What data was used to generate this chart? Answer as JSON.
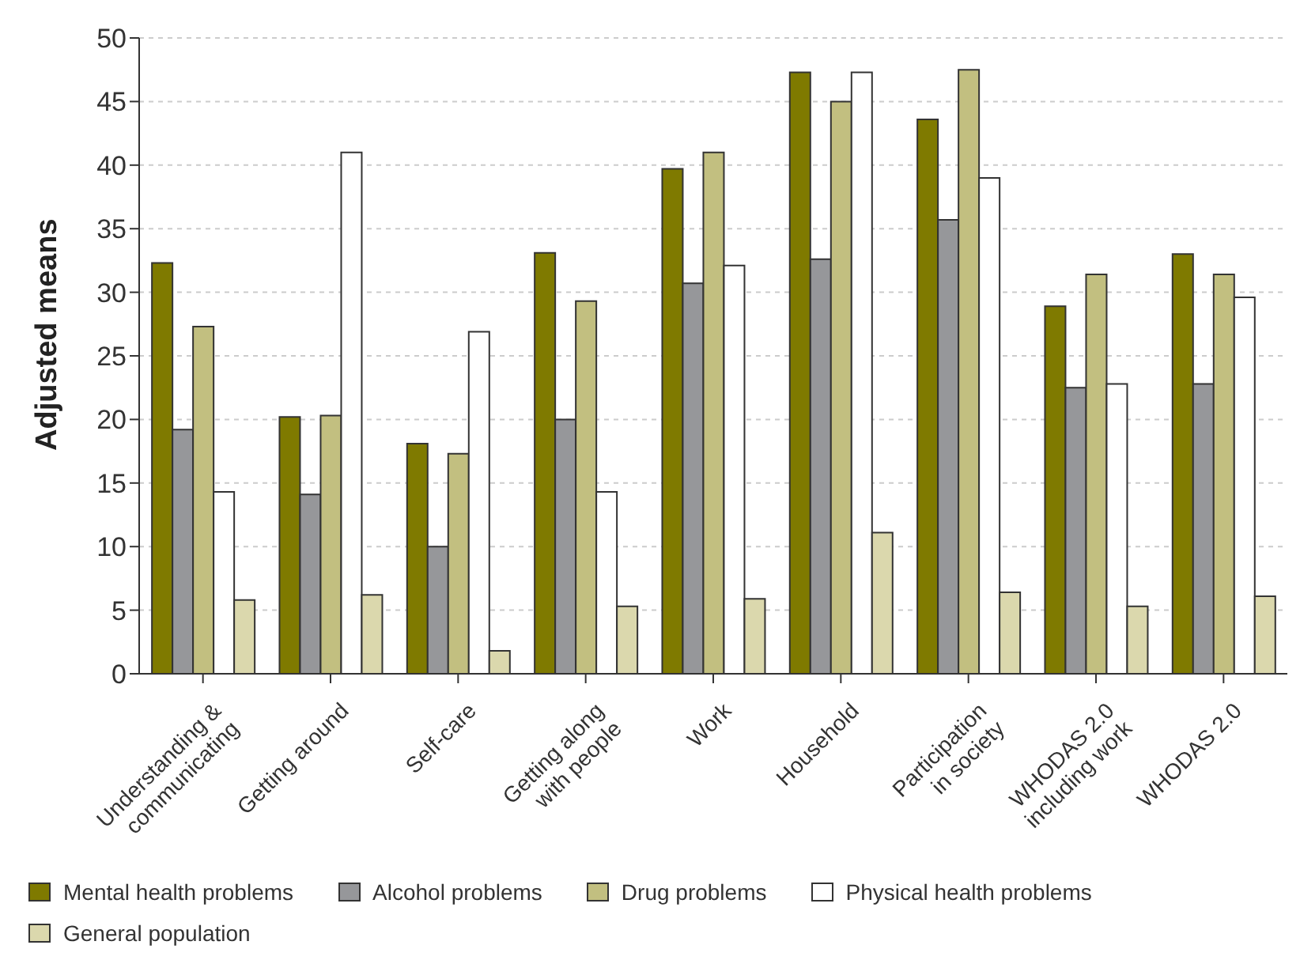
{
  "chart_data": {
    "type": "bar",
    "ylabel": "Adjusted means",
    "categories": [
      "Understanding & communicating",
      "Getting around",
      "Self-care",
      "Getting along with people",
      "Work",
      "Household",
      "Participation in society",
      "WHODAS 2.0 including work",
      "WHODAS 2.0"
    ],
    "series": [
      {
        "name": "Mental health problems",
        "color": "#7f7a00",
        "values": [
          32.3,
          20.2,
          18.1,
          33.1,
          39.7,
          47.3,
          43.6,
          28.9,
          33.0
        ]
      },
      {
        "name": "Alcohol problems",
        "color": "#96979a",
        "values": [
          19.2,
          14.1,
          10.0,
          20.0,
          30.7,
          32.6,
          35.7,
          22.5,
          22.8
        ]
      },
      {
        "name": "Drug problems",
        "color": "#c2bf80",
        "values": [
          27.3,
          20.3,
          17.3,
          29.3,
          41.0,
          45.0,
          47.5,
          31.4,
          31.4
        ]
      },
      {
        "name": "Physical health problems",
        "color": "#ffffff",
        "values": [
          14.3,
          41.0,
          26.9,
          14.3,
          32.1,
          47.3,
          39.0,
          22.8,
          29.6
        ]
      },
      {
        "name": "General population",
        "color": "#dbd8ad",
        "values": [
          5.8,
          6.2,
          1.8,
          5.3,
          5.9,
          11.1,
          6.4,
          5.3,
          6.1
        ]
      }
    ],
    "ylim": [
      0,
      50
    ],
    "yticks": [
      0,
      5,
      10,
      15,
      20,
      25,
      30,
      35,
      40,
      45,
      50
    ],
    "grid": "y",
    "legend": "bottom"
  }
}
